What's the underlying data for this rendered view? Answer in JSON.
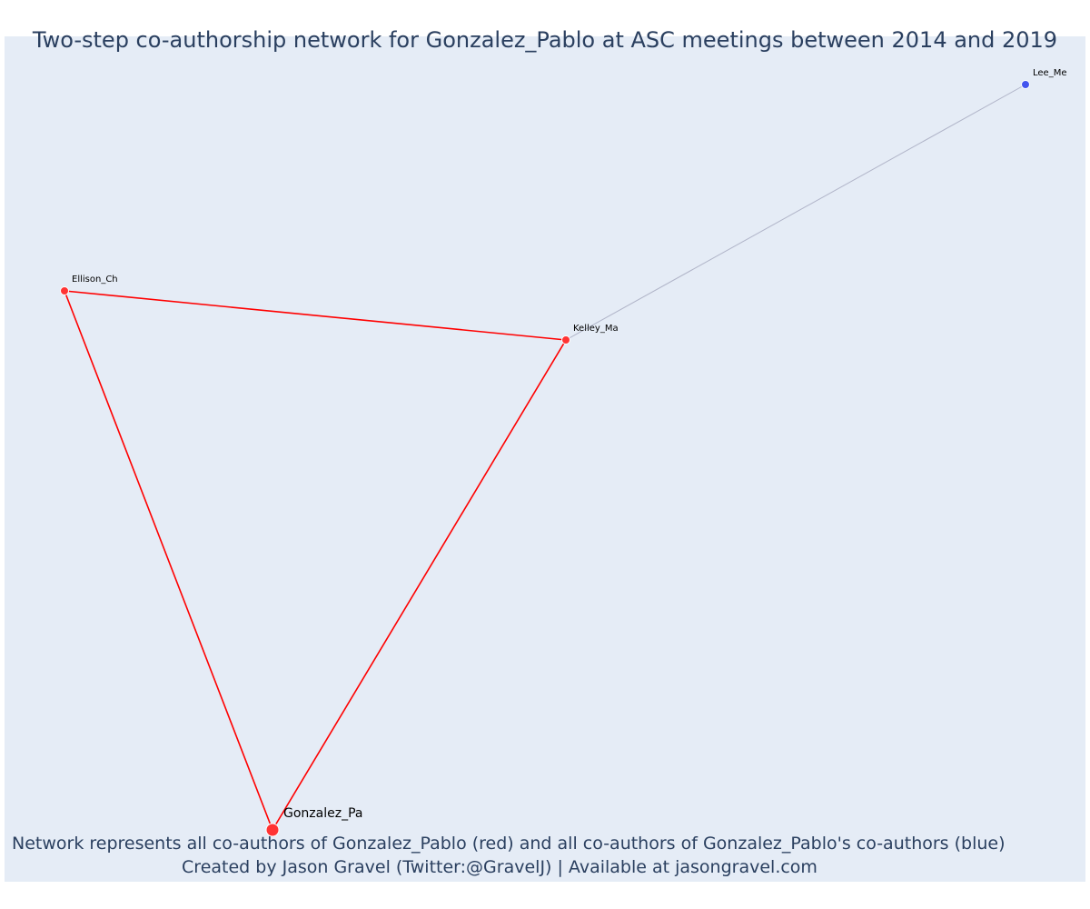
{
  "title": "Two-step co-authorship network for Gonzalez_Pablo at ASC meetings between 2014 and 2019",
  "caption": {
    "line1": "Network represents all co-authors of Gonzalez_Pablo (red) and all co-authors of Gonzalez_Pablo's co-authors (blue)",
    "line2": "Created by Jason Gravel (Twitter:@GravelJ) | Available at jasongravel.com"
  },
  "colors": {
    "background": "#e5ecf6",
    "first_degree": "#ff3333",
    "second_degree": "#4455ee",
    "first_degree_edge": "#ff0000",
    "second_degree_edge": "#b0b4c8",
    "text": "#2a3f5f"
  },
  "nodes": [
    {
      "id": "Gonzalez_Pa",
      "label": "Gonzalez_Pa",
      "group": "focal"
    },
    {
      "id": "Ellison_Ch",
      "label": "Ellison_Ch",
      "group": "first_degree"
    },
    {
      "id": "Kelley_Ma",
      "label": "Kelley_Ma",
      "group": "first_degree"
    },
    {
      "id": "Lee_Me",
      "label": "Lee_Me",
      "group": "second_degree"
    }
  ],
  "edges": [
    {
      "source": "Gonzalez_Pa",
      "target": "Ellison_Ch",
      "group": "first_degree"
    },
    {
      "source": "Gonzalez_Pa",
      "target": "Kelley_Ma",
      "group": "first_degree"
    },
    {
      "source": "Ellison_Ch",
      "target": "Kelley_Ma",
      "group": "first_degree"
    },
    {
      "source": "Kelley_Ma",
      "target": "Lee_Me",
      "group": "second_degree"
    }
  ]
}
